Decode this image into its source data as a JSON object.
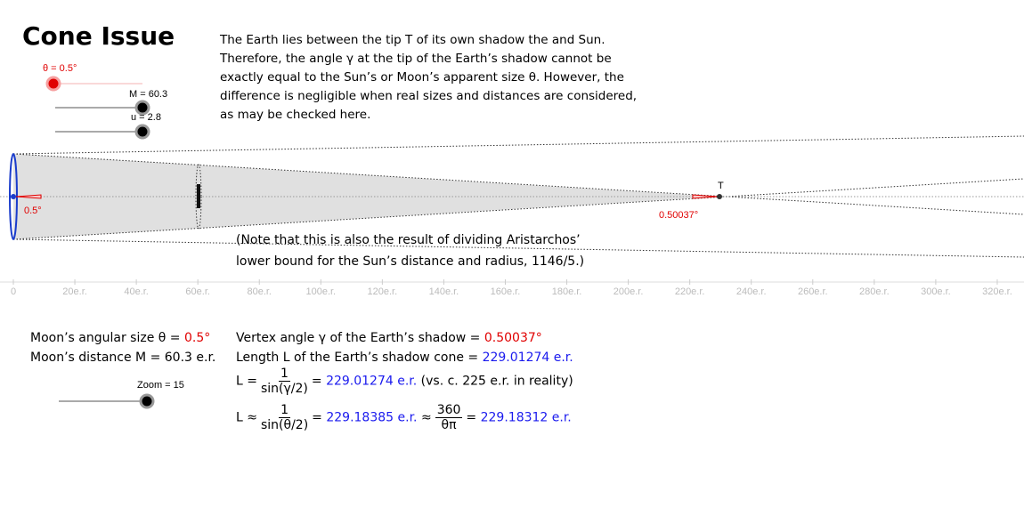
{
  "title": "Cone Issue",
  "description": [
    "The Earth lies between the tip T of its own shadow the and Sun.",
    "Therefore, the angle γ at the tip of the Earth’s shadow cannot be",
    "exactly equal to the Sun’s or Moon’s apparent size θ. However, the",
    "difference is negligible when real sizes and distances are considered,",
    "as may be checked here."
  ],
  "sliders": [
    {
      "label": "θ = 0.5°"
    },
    {
      "label": "M = 60.3"
    },
    {
      "label": "u = 2.8"
    },
    {
      "label": "Zoom = 15"
    }
  ],
  "figure": {
    "earth_angle": "0.5°",
    "tip_angle": "0.50037°",
    "tip": "T",
    "note": [
      "(Note that this is also the result of dividing Aristarchos’",
      "lower bound for the Sun’s distance and radius, 1146/5.)"
    ],
    "axis_ticks": [
      0,
      {
        "value": 20,
        "label": "20e.r."
      },
      {
        "value": 40,
        "label": "40e.r."
      },
      {
        "value": 60,
        "label": "60e.r."
      },
      {
        "value": 80,
        "label": "80e.r."
      },
      {
        "value": 100,
        "label": "100e.r."
      },
      {
        "value": 120,
        "label": "120e.r."
      },
      {
        "value": 140,
        "label": "140e.r."
      },
      {
        "value": 160,
        "label": "160e.r."
      },
      {
        "value": 180,
        "label": "180e.r."
      },
      {
        "value": 200,
        "label": "200e.r."
      },
      {
        "value": 220,
        "label": "220e.r."
      },
      {
        "value": 240,
        "label": "240e.r."
      },
      {
        "value": 260,
        "label": "260e.r."
      },
      {
        "value": 280,
        "label": "280e.r."
      },
      {
        "value": 300,
        "label": "300e.r."
      },
      {
        "value": 320,
        "label": "320e.r."
      }
    ]
  },
  "info": {
    "angular_size": {
      "text": "Moon’s angular size θ = ",
      "value": "0.5°"
    },
    "distance": "Moon’s distance M = 60.3 e.r."
  },
  "results": {
    "vertex": {
      "text": "Vertex angle γ of the Earth’s shadow = ",
      "value": "0.50037°"
    },
    "length": {
      "text": "Length L of the Earth’s shadow cone = ",
      "value": "229.01274 e.r."
    },
    "formula1": {
      "lhs": "L =",
      "num": "1",
      "den": "sin(γ/2)",
      "eq": "=",
      "value": "229.01274 e.r.",
      "note": "(vs. c. 225 e.r. in reality)"
    },
    "formula2": {
      "lhs": "L ≈",
      "num": "1",
      "den": "sin(θ/2)",
      "eq": "=",
      "value": "229.18385 e.r.",
      "approx": "≈",
      "num2": "360",
      "den2": "θπ",
      "eq2": "=",
      "value2": "229.18312 e.r."
    }
  }
}
